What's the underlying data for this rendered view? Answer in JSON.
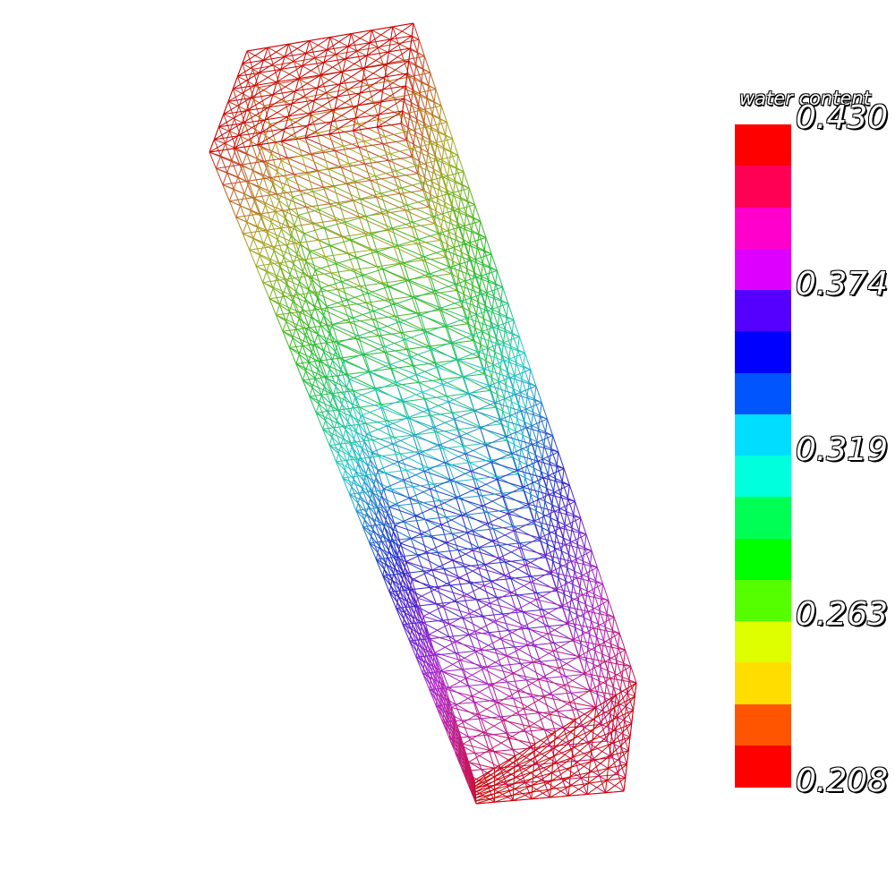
{
  "legend": {
    "title": "water content",
    "tick_labels": [
      "0.430",
      "0.374",
      "0.319",
      "0.263",
      "0.208"
    ],
    "min": 0.208,
    "max": 0.43,
    "colors_top_to_bottom": [
      "#ff0000",
      "#ff0055",
      "#ff00cc",
      "#dd00ff",
      "#5500ff",
      "#0000ff",
      "#0055ff",
      "#00ddff",
      "#00ffdd",
      "#00ff55",
      "#00ff00",
      "#55ff00",
      "#ddff00",
      "#ffdd00",
      "#ff5500",
      "#ff0000"
    ]
  },
  "scene": {
    "object": "wireframe-soil-column",
    "grid": {
      "nx": 8,
      "ny": 8,
      "nz": 40
    },
    "top_color": "#cc0000",
    "bottom_color": "#cc0000",
    "gradient_top_to_bottom": [
      "#cc2222",
      "#aaaa22",
      "#22bb22",
      "#22cccc",
      "#2222cc",
      "#aa22cc",
      "#cc1144"
    ]
  }
}
